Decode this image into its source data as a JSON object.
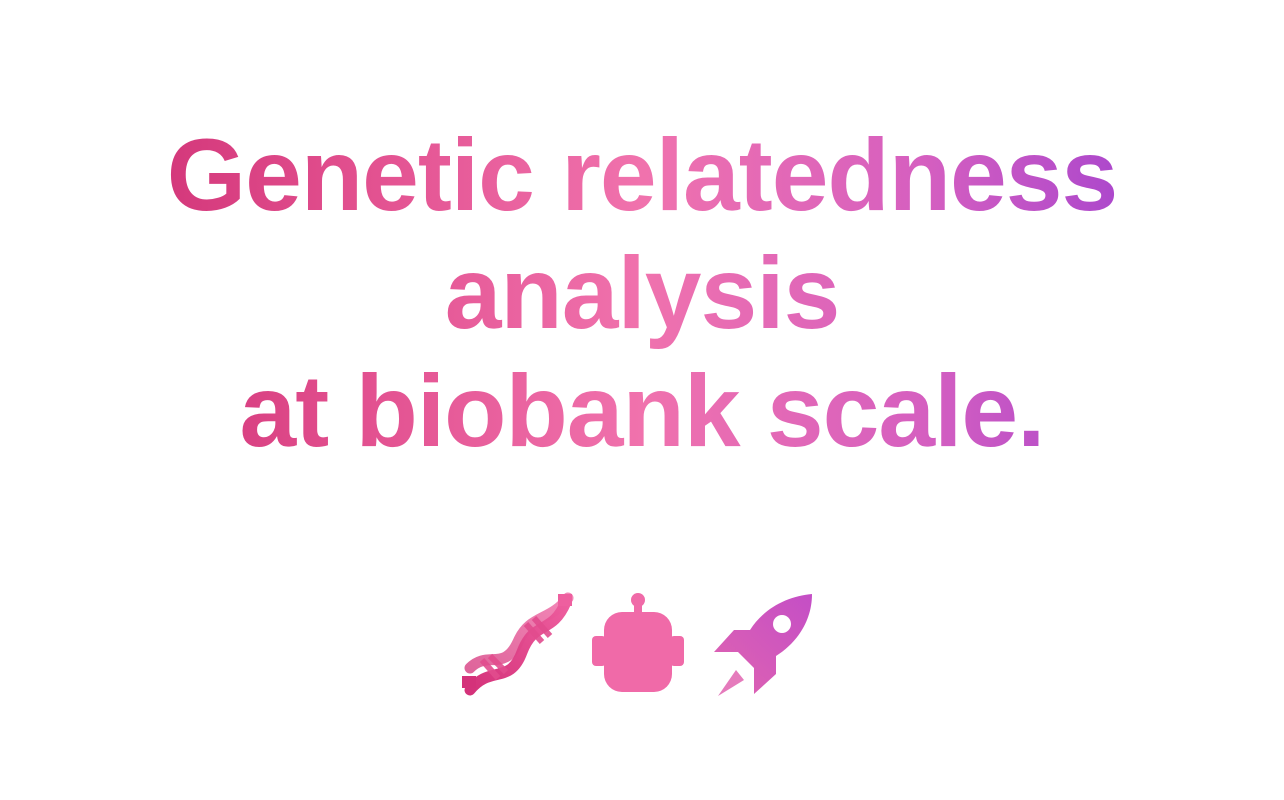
{
  "headline": {
    "line1": "Genetic relatedness",
    "line2": "analysis",
    "line3": "at biobank scale."
  },
  "icons": [
    {
      "name": "dna-icon"
    },
    {
      "name": "robot-icon"
    },
    {
      "name": "rocket-icon"
    }
  ],
  "colors": {
    "gradient_start": "#c8246a",
    "gradient_mid": "#f072ad",
    "gradient_end": "#8a34d6"
  }
}
